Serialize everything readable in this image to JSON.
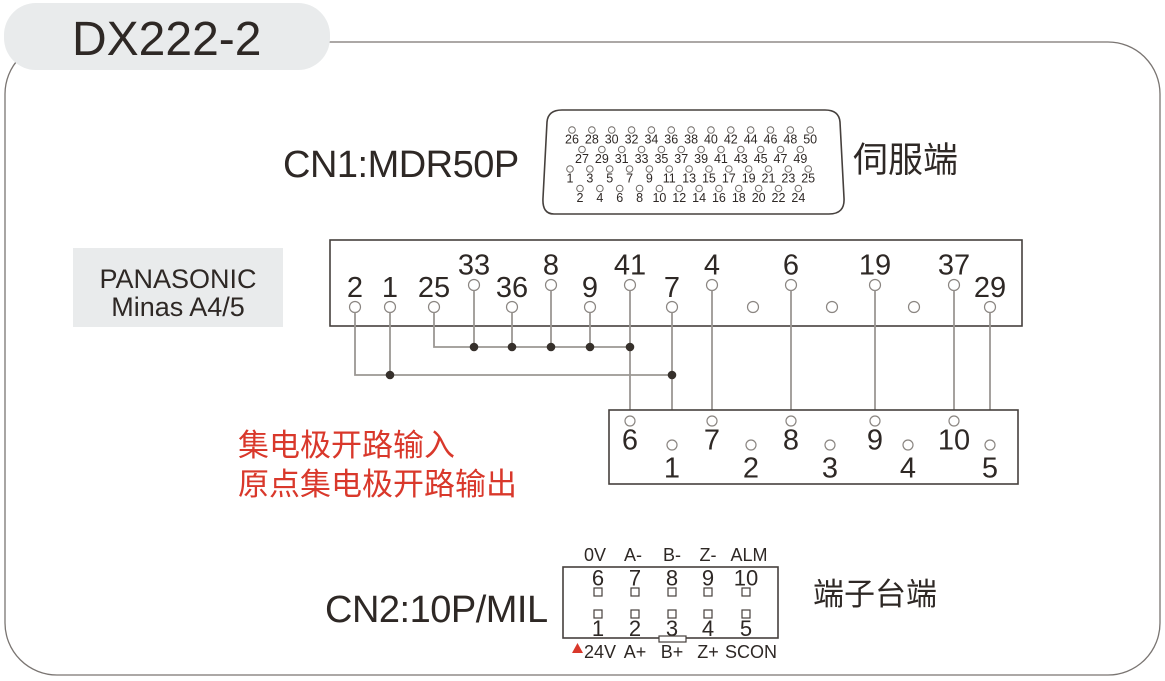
{
  "title": "DX222-2",
  "cn1": {
    "label": "CN1:MDR50P",
    "side_label": "伺服端",
    "rows": [
      [
        "26",
        "28",
        "30",
        "32",
        "34",
        "36",
        "38",
        "40",
        "42",
        "44",
        "46",
        "48",
        "50"
      ],
      [
        "27",
        "29",
        "31",
        "33",
        "35",
        "37",
        "39",
        "41",
        "43",
        "45",
        "47",
        "49"
      ],
      [
        "1",
        "3",
        "5",
        "7",
        "9",
        "11",
        "13",
        "15",
        "17",
        "19",
        "21",
        "23",
        "25"
      ],
      [
        "2",
        "4",
        "6",
        "8",
        "10",
        "12",
        "14",
        "16",
        "18",
        "20",
        "22",
        "24"
      ]
    ]
  },
  "drive": {
    "brand_line1": "PANASONIC",
    "brand_line2": "Minas A4/5",
    "upper_pins": [
      "33",
      "8",
      "41",
      "4",
      "6",
      "19",
      "37"
    ],
    "lower_pins": [
      "2",
      "1",
      "25",
      "36",
      "9",
      "7",
      "29"
    ]
  },
  "io_box": {
    "top_pins": [
      "6",
      "7",
      "8",
      "9",
      "10"
    ],
    "bottom_pins": [
      "1",
      "2",
      "3",
      "4",
      "5"
    ]
  },
  "notes": {
    "line1": "集电极开路输入",
    "line2": "原点集电极开路输出"
  },
  "cn2": {
    "label": "CN2:10P/MIL",
    "side_label": "端子台端",
    "top_signal_labels": [
      "0V",
      "A-",
      "B-",
      "Z-",
      "ALM"
    ],
    "top_pins": [
      "6",
      "7",
      "8",
      "9",
      "10"
    ],
    "bottom_pins": [
      "1",
      "2",
      "3",
      "4",
      "5"
    ],
    "bottom_signal_labels": [
      "24V",
      "A+",
      "B+",
      "Z+",
      "SCON"
    ]
  },
  "colors": {
    "accent_red": "#d9382b",
    "panel_gray": "#e9ebec"
  }
}
